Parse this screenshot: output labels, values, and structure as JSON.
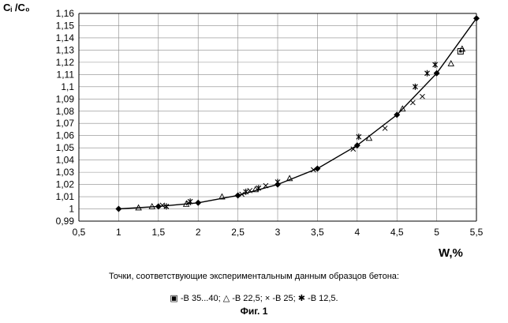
{
  "chart_data": {
    "type": "scatter",
    "ylabel": "Cᵢ /C₀",
    "xlabel": "W,%",
    "xlim": [
      0.5,
      5.5
    ],
    "ylim": [
      0.99,
      1.16
    ],
    "xticks": [
      "0,5",
      "1",
      "1,5",
      "2",
      "2,5",
      "3",
      "3,5",
      "4",
      "4,5",
      "5",
      "5,5"
    ],
    "yticks": [
      "0,99",
      "1",
      "1,01",
      "1,02",
      "1,03",
      "1,04",
      "1,05",
      "1,06",
      "1,07",
      "1,08",
      "1,09",
      "1,1",
      "1,11",
      "1,12",
      "1,13",
      "1,14",
      "1,15",
      "1,16"
    ],
    "grid": true,
    "series": [
      {
        "marker": "diamond-line",
        "values": [
          [
            1,
            1.0
          ],
          [
            1.5,
            1.002
          ],
          [
            2,
            1.005
          ],
          [
            2.5,
            1.011
          ],
          [
            3,
            1.02
          ],
          [
            3.5,
            1.033
          ],
          [
            4,
            1.052
          ],
          [
            4.5,
            1.077
          ],
          [
            5,
            1.111
          ],
          [
            5.5,
            1.156
          ]
        ]
      },
      {
        "name": "B 35...40",
        "marker": "square",
        "values": [
          [
            5.3,
            1.129
          ]
        ]
      },
      {
        "name": "B 22,5",
        "marker": "triangle",
        "values": [
          [
            1.25,
            1.001
          ],
          [
            1.42,
            1.002
          ],
          [
            1.85,
            1.004
          ],
          [
            2.3,
            1.01
          ],
          [
            2.72,
            1.016
          ],
          [
            3.15,
            1.025
          ],
          [
            4.15,
            1.058
          ],
          [
            4.57,
            1.082
          ],
          [
            5.18,
            1.119
          ],
          [
            5.32,
            1.131
          ]
        ]
      },
      {
        "name": "B 25",
        "marker": "cross",
        "values": [
          [
            1.55,
            1.003
          ],
          [
            1.88,
            1.005
          ],
          [
            2.55,
            1.012
          ],
          [
            2.65,
            1.015
          ],
          [
            2.85,
            1.019
          ],
          [
            3.45,
            1.032
          ],
          [
            3.95,
            1.049
          ],
          [
            4.35,
            1.066
          ],
          [
            4.7,
            1.087
          ],
          [
            4.82,
            1.092
          ]
        ]
      },
      {
        "name": "B 12,5",
        "marker": "asterisk",
        "values": [
          [
            1.6,
            1.002
          ],
          [
            1.9,
            1.006
          ],
          [
            2.6,
            1.014
          ],
          [
            2.76,
            1.017
          ],
          [
            3.0,
            1.022
          ],
          [
            4.02,
            1.059
          ],
          [
            4.73,
            1.1
          ],
          [
            4.88,
            1.111
          ],
          [
            4.98,
            1.118
          ]
        ]
      }
    ]
  },
  "caption": {
    "main": "Точки, соответствующие экспериментальным данным образцов бетона:",
    "legend_items": [
      {
        "symbol": "▣",
        "label": "-B 35...40;"
      },
      {
        "symbol": "△",
        "label": "-B 22,5;"
      },
      {
        "symbol": "×",
        "label": "-B 25;"
      },
      {
        "symbol": "✱",
        "label": "-B 12,5."
      }
    ],
    "figure": "Фиг. 1"
  }
}
